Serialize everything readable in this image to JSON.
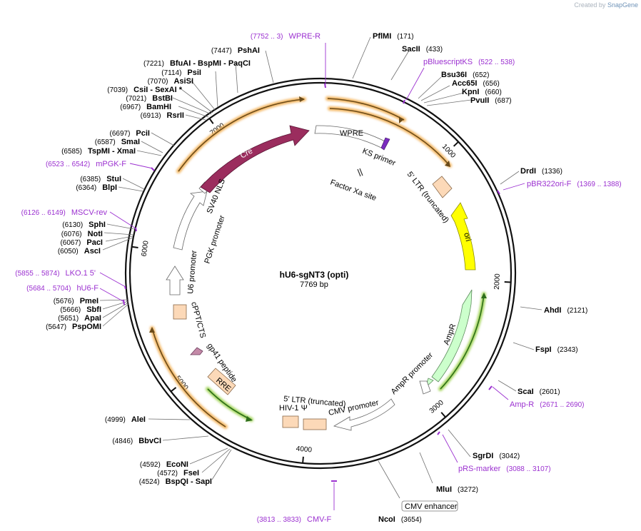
{
  "credit": {
    "prefix": "Created by",
    "brand": "SnapGene"
  },
  "plasmid": {
    "name": "hU6-sgNT3 (opti)",
    "size_label": "7769 bp",
    "length": 7769
  },
  "colors": {
    "enzyme": "#000000",
    "primer": "#9b30d0",
    "ring": "#111111",
    "orange_glow": "#f2b35c",
    "green_glow": "#a3d55a"
  },
  "ticks": [
    {
      "pos": 1000,
      "label": "1000"
    },
    {
      "pos": 2000,
      "label": "2000"
    },
    {
      "pos": 3000,
      "label": "3000"
    },
    {
      "pos": 4000,
      "label": "4000"
    },
    {
      "pos": 5000,
      "label": "5000"
    },
    {
      "pos": 6000,
      "label": "6000"
    },
    {
      "pos": 7000,
      "label": "7000"
    }
  ],
  "enzymes": [
    {
      "name": "PflMI",
      "pos": "(171)"
    },
    {
      "name": "SacII",
      "pos": "(433)"
    },
    {
      "name": "Bsu36I",
      "pos": "(652)"
    },
    {
      "name": "Acc65I",
      "pos": "(656)"
    },
    {
      "name": "KpnI",
      "pos": "(660)"
    },
    {
      "name": "PvuII",
      "pos": "(687)"
    },
    {
      "name": "DrdI",
      "pos": "(1336)"
    },
    {
      "name": "AhdI",
      "pos": "(2121)"
    },
    {
      "name": "FspI",
      "pos": "(2343)"
    },
    {
      "name": "ScaI",
      "pos": "(2601)"
    },
    {
      "name": "SgrDI",
      "pos": "(3042)"
    },
    {
      "name": "MluI",
      "pos": "(3272)"
    },
    {
      "name": "NcoI",
      "pos": "(3654)"
    },
    {
      "name": "BspQI - SapI",
      "pos": "(4524)"
    },
    {
      "name": "FseI",
      "pos": "(4572)"
    },
    {
      "name": "EcoNI",
      "pos": "(4592)"
    },
    {
      "name": "BbvCI",
      "pos": "(4846)"
    },
    {
      "name": "AleI",
      "pos": "(4999)"
    },
    {
      "name": "PspOMI",
      "pos": "(5647)"
    },
    {
      "name": "ApaI",
      "pos": "(5651)"
    },
    {
      "name": "SbfI",
      "pos": "(5666)"
    },
    {
      "name": "PmeI",
      "pos": "(5676)"
    },
    {
      "name": "AscI",
      "pos": "(6050)"
    },
    {
      "name": "PacI",
      "pos": "(6067)"
    },
    {
      "name": "NotI",
      "pos": "(6076)"
    },
    {
      "name": "SphI",
      "pos": "(6130)"
    },
    {
      "name": "BlpI",
      "pos": "(6364)"
    },
    {
      "name": "StuI",
      "pos": "(6385)"
    },
    {
      "name": "TspMI - XmaI",
      "pos": "(6585)"
    },
    {
      "name": "SmaI",
      "pos": "(6587)"
    },
    {
      "name": "PciI",
      "pos": "(6697)"
    },
    {
      "name": "RsrII",
      "pos": "(6913)"
    },
    {
      "name": "BamHI",
      "pos": "(6967)"
    },
    {
      "name": "BstBI",
      "pos": "(7021)"
    },
    {
      "name": "CsiI - SexAI *",
      "pos": "(7039)"
    },
    {
      "name": "AsiSI",
      "pos": "(7070)"
    },
    {
      "name": "PsiI",
      "pos": "(7114)"
    },
    {
      "name": "BfuAI - BspMI - PaqCI",
      "pos": "(7221)"
    },
    {
      "name": "PshAI",
      "pos": "(7447)"
    }
  ],
  "primers": [
    {
      "name": "WPRE-R",
      "pos": "(7752 .. 3)"
    },
    {
      "name": "pBluescriptKS",
      "pos": "(522 .. 538)"
    },
    {
      "name": "pBR322ori-F",
      "pos": "(1369 .. 1388)"
    },
    {
      "name": "Amp-R",
      "pos": "(2671 .. 2690)"
    },
    {
      "name": "pRS-marker",
      "pos": "(3088 .. 3107)"
    },
    {
      "name": "CMV-F",
      "pos": "(3813 .. 3833)"
    },
    {
      "name": "hU6-F",
      "pos": "(5684 .. 5704)"
    },
    {
      "name": "LKO.1 5'",
      "pos": "(5855 .. 5874)"
    },
    {
      "name": "MSCV-rev",
      "pos": "(6126 .. 6149)"
    },
    {
      "name": "mPGK-F",
      "pos": "(6523 .. 6542)"
    }
  ],
  "features": {
    "wpre": "WPRE",
    "ks_primer": "KS primer",
    "factor_xa": "Factor Xa site",
    "ltr5_top": "5' LTR (truncated)",
    "ori": "ori",
    "ampr": "AmpR",
    "ampr_promoter": "AmpR promoter",
    "cmv_enhancer": "CMV enhancer",
    "cmv_promoter": "CMV promoter",
    "ltr5_bottom": "5' LTR (truncated)",
    "hiv1_psi": "HIV-1 Ψ",
    "rre": "RRE",
    "gp41": "gp41 peptide",
    "cppt": "cPPT/CTS",
    "u6": "U6 promoter",
    "pgk": "PGK promoter",
    "sv40": "SV40 NLS",
    "cre": "Cre"
  }
}
